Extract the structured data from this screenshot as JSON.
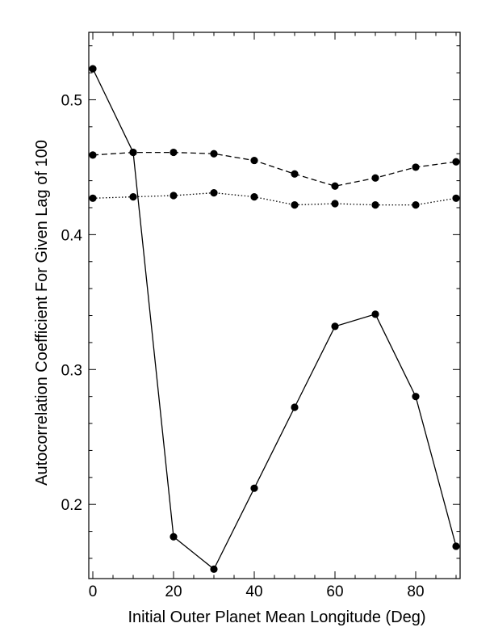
{
  "chart_data": {
    "type": "line",
    "title": "",
    "xlabel": "Initial Outer Planet Mean Longitude (Deg)",
    "ylabel": "Autocorrelation Coefficient For Given Lag of 100",
    "xlim": [
      -1,
      91
    ],
    "ylim": [
      0.145,
      0.55
    ],
    "x_ticks": [
      0,
      20,
      40,
      60,
      80
    ],
    "x_tick_labels": [
      "0",
      "20",
      "40",
      "60",
      "80"
    ],
    "y_ticks": [
      0.2,
      0.3,
      0.4,
      0.5
    ],
    "y_tick_labels": [
      "0.2",
      "0.3",
      "0.4",
      "0.5"
    ],
    "x": [
      0,
      10,
      20,
      30,
      40,
      50,
      60,
      70,
      80,
      90
    ],
    "series": [
      {
        "line_style": "solid",
        "color": "#000000",
        "values": [
          0.523,
          0.461,
          0.176,
          0.152,
          0.212,
          0.272,
          0.332,
          0.341,
          0.28,
          0.169
        ]
      },
      {
        "line_style": "dashed",
        "color": "#000000",
        "values": [
          0.459,
          0.461,
          0.461,
          0.46,
          0.455,
          0.445,
          0.436,
          0.442,
          0.45,
          0.454
        ]
      },
      {
        "line_style": "dotted",
        "color": "#000000",
        "values": [
          0.427,
          0.428,
          0.429,
          0.431,
          0.428,
          0.422,
          0.423,
          0.422,
          0.422,
          0.427
        ]
      }
    ],
    "grid": false,
    "legend": "none"
  }
}
